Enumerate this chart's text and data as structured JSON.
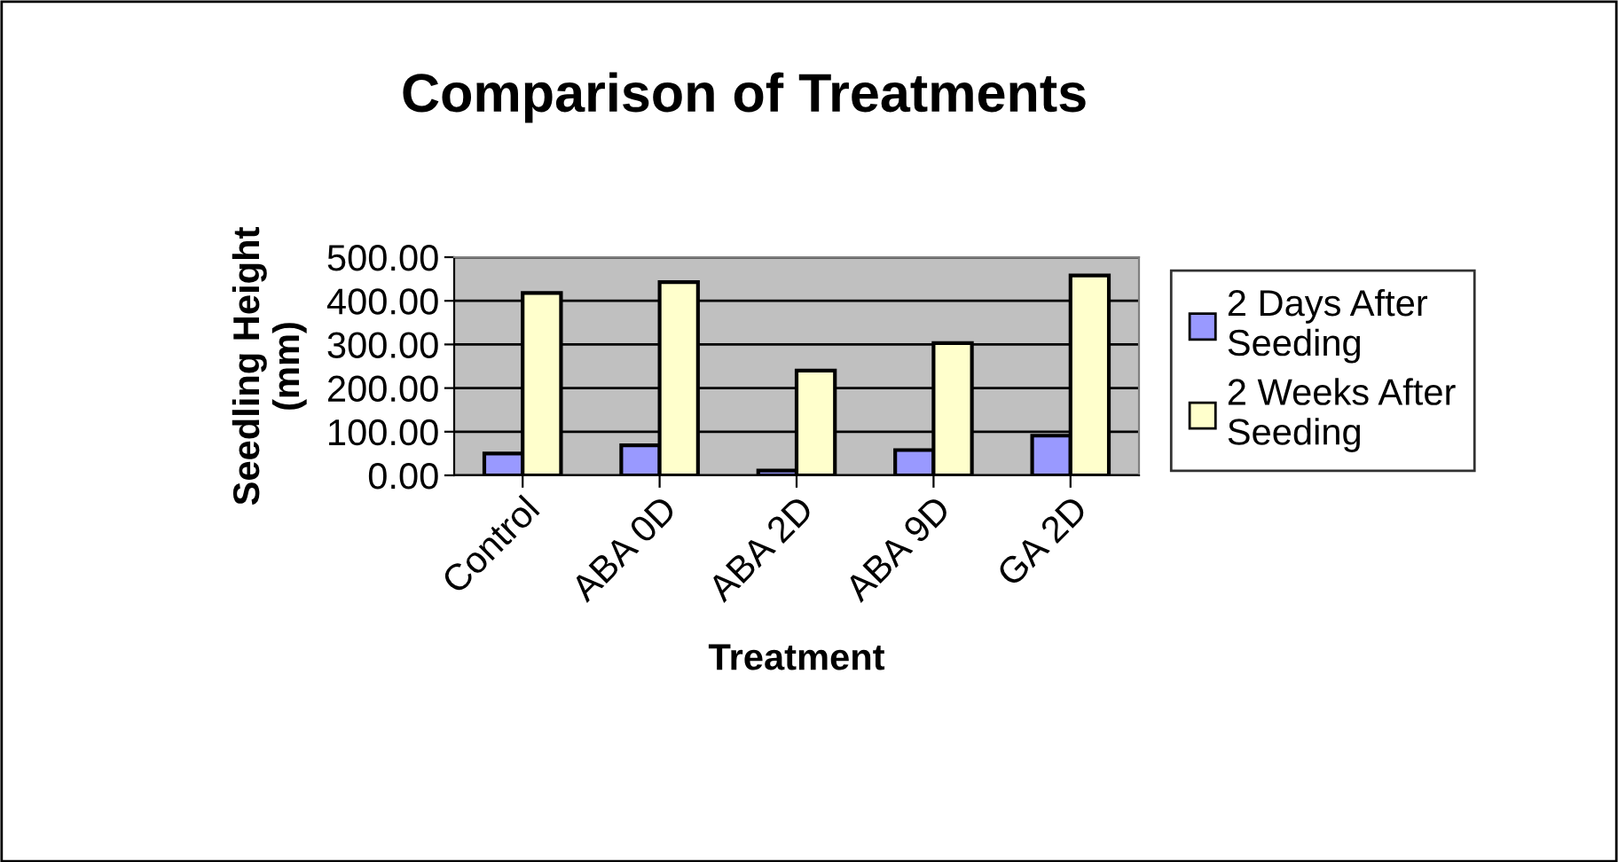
{
  "chart_data": {
    "type": "bar",
    "title": "Comparison of Treatments",
    "xlabel": "Treatment",
    "ylabel": "Seedling Height\n(mm)",
    "categories": [
      "Control",
      "ABA 0D",
      "ABA 2D",
      "ABA 9D",
      "GA 2D"
    ],
    "series": [
      {
        "name": "2 Days After\nSeeding",
        "color": "#9999ff",
        "values": [
          50,
          69,
          11,
          58,
          91
        ]
      },
      {
        "name": "2 Weeks After\nSeeding",
        "color": "#ffffcc",
        "values": [
          418,
          443,
          240,
          303,
          458
        ]
      }
    ],
    "ylim": [
      0,
      500
    ],
    "yticks": [
      {
        "value": 0,
        "label": "0.00"
      },
      {
        "value": 100,
        "label": "100.00"
      },
      {
        "value": 200,
        "label": "200.00"
      },
      {
        "value": 300,
        "label": "300.00"
      },
      {
        "value": 400,
        "label": "400.00"
      },
      {
        "value": 500,
        "label": "500.00"
      }
    ],
    "grid": "y",
    "legend": "right"
  }
}
